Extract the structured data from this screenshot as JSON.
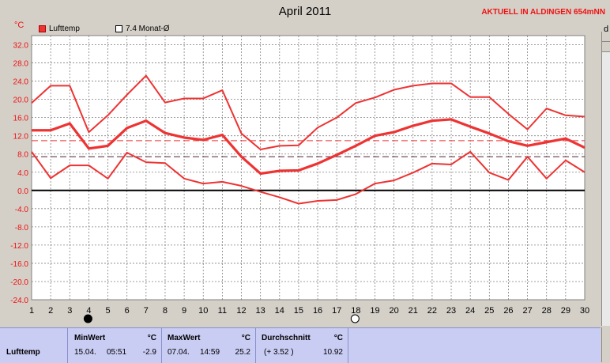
{
  "header": {
    "title": "April 2011",
    "station": "AKTUELL IN ALDINGEN 654mNN",
    "unit": "°C",
    "edge_label": "d"
  },
  "legend": {
    "item1": "Lufttemp",
    "item2": "7.4 Monat-Ø"
  },
  "colors": {
    "series": "#ee3333",
    "zero_line": "#000000",
    "plot_bg": "#ffffff",
    "grid": "#808080",
    "table_bg": "#c9ccf3"
  },
  "chart_data": {
    "type": "line",
    "title": "April 2011",
    "ylabel": "°C",
    "xlim": [
      1,
      30
    ],
    "ylim": [
      -24,
      34
    ],
    "x_ticks": [
      1,
      2,
      3,
      4,
      5,
      6,
      7,
      8,
      9,
      10,
      11,
      12,
      13,
      14,
      15,
      16,
      17,
      18,
      19,
      20,
      21,
      22,
      23,
      24,
      25,
      26,
      27,
      28,
      29,
      30
    ],
    "y_ticks": [
      "32.0",
      "28.0",
      "24.0",
      "20.0",
      "16.0",
      "12.0",
      "8.0",
      "4.0",
      "0.0",
      "-4.0",
      "-8.0",
      "-12.0",
      "-16.0",
      "-20.0",
      "-24.0"
    ],
    "x": [
      1,
      2,
      3,
      4,
      5,
      6,
      7,
      8,
      9,
      10,
      11,
      12,
      13,
      14,
      15,
      16,
      17,
      18,
      19,
      20,
      21,
      22,
      23,
      24,
      25,
      26,
      27,
      28,
      29,
      30
    ],
    "series": [
      {
        "name": "",
        "style": "thin",
        "values": [
          19.2,
          23.0,
          23.0,
          12.8,
          16.5,
          21.0,
          25.2,
          19.3,
          20.2,
          20.2,
          22.0,
          12.5,
          9.0,
          9.8,
          9.9,
          13.8,
          16.0,
          19.2,
          20.4,
          22.1,
          23.0,
          23.5,
          23.5,
          20.5,
          20.5,
          16.8,
          13.4,
          18.0,
          16.5,
          16.2
        ]
      },
      {
        "name": "Lufttemp",
        "style": "thick",
        "values": [
          13.2,
          13.2,
          14.7,
          9.2,
          9.8,
          13.7,
          15.3,
          12.6,
          11.6,
          11.1,
          12.2,
          7.4,
          3.7,
          4.3,
          4.4,
          5.9,
          7.8,
          9.8,
          12.0,
          12.8,
          14.2,
          15.3,
          15.6,
          14.0,
          12.5,
          10.8,
          9.8,
          10.6,
          11.4,
          9.4
        ]
      },
      {
        "name": "",
        "style": "thin",
        "values": [
          8.5,
          2.7,
          5.5,
          5.5,
          2.6,
          8.3,
          6.2,
          6.0,
          2.6,
          1.5,
          1.9,
          1.0,
          -0.3,
          -1.5,
          -2.9,
          -2.3,
          -2.1,
          -0.8,
          1.5,
          2.2,
          3.9,
          5.9,
          5.7,
          8.5,
          3.9,
          2.3,
          7.4,
          2.6,
          6.6,
          4.0
        ]
      }
    ],
    "reference_lines": [
      {
        "label": "7.4 Monat-Ø",
        "value": 7.4,
        "style": "dashed-dark"
      },
      {
        "name": "",
        "value": 10.92,
        "style": "dashed-red"
      }
    ],
    "markers": [
      {
        "x": 4,
        "symbol": "new-moon"
      },
      {
        "x": 18,
        "symbol": "full-moon"
      }
    ],
    "grid": true
  },
  "table": {
    "row_label": "Lufttemp",
    "min": {
      "header": "MinWert",
      "unit": "°C",
      "date": "15.04.",
      "time": "05:51",
      "value": "-2.9"
    },
    "max": {
      "header": "MaxWert",
      "unit": "°C",
      "date": "07.04.",
      "time": "14:59",
      "value": "25.2"
    },
    "avg": {
      "header": "Durchschnitt",
      "unit": "°C",
      "deviation": "(+ 3.52 )",
      "value": "10.92"
    }
  }
}
